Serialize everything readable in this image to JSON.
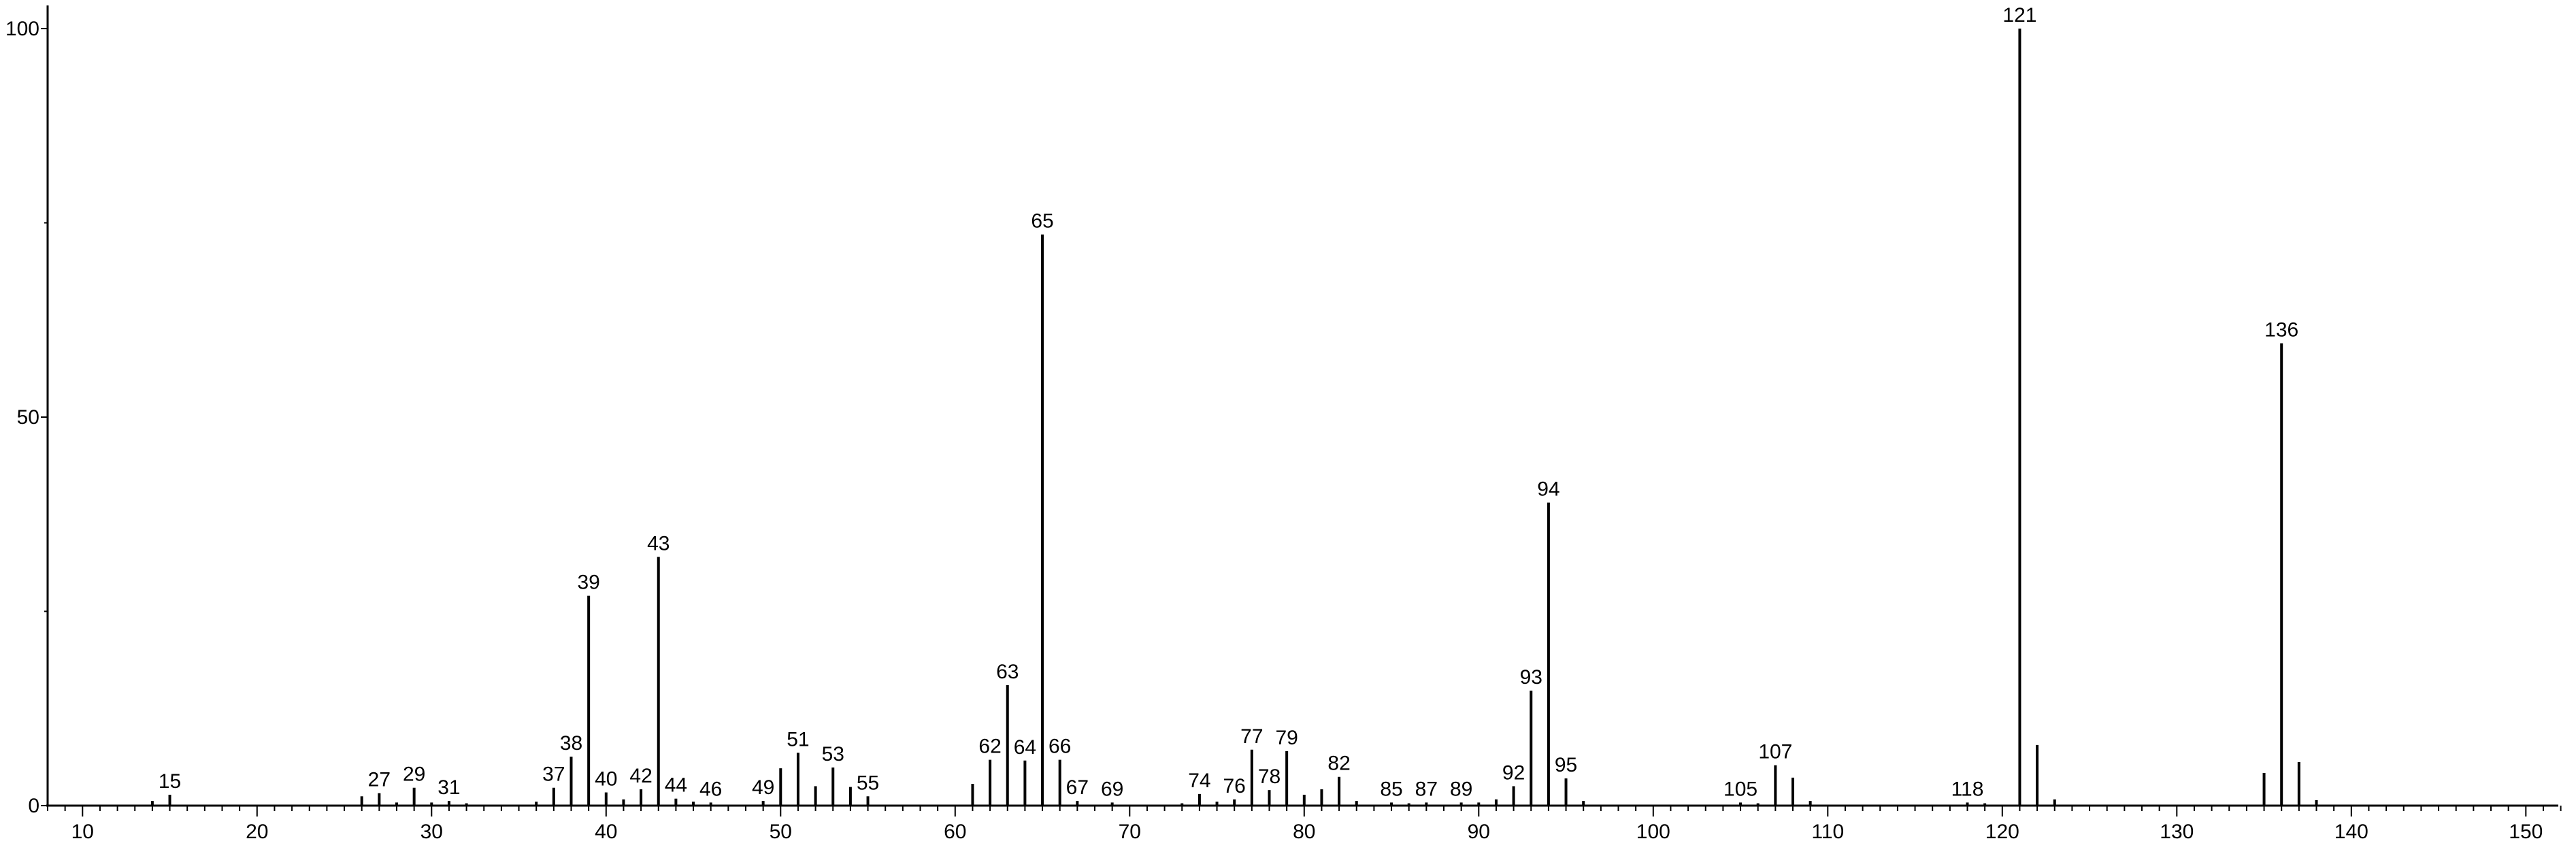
{
  "chart_data": {
    "type": "bar",
    "title": "",
    "xlabel": "",
    "ylabel": "",
    "xlim": [
      8,
      152
    ],
    "ylim": [
      0,
      100
    ],
    "x_ticks": [
      10,
      20,
      30,
      40,
      50,
      60,
      70,
      80,
      90,
      100,
      110,
      120,
      130,
      140,
      150
    ],
    "y_ticks": [
      0,
      50,
      100
    ],
    "grid": false,
    "legend": "none",
    "bar_color": "#000000",
    "peaks": [
      {
        "x": 14,
        "y": 0.6
      },
      {
        "x": 15,
        "y": 1.4,
        "label": "15"
      },
      {
        "x": 26,
        "y": 1.2
      },
      {
        "x": 27,
        "y": 1.6,
        "label": "27"
      },
      {
        "x": 28,
        "y": 0.4
      },
      {
        "x": 29,
        "y": 2.3,
        "label": "29"
      },
      {
        "x": 30,
        "y": 0.4
      },
      {
        "x": 31,
        "y": 0.6,
        "label": "31"
      },
      {
        "x": 32,
        "y": 0.3
      },
      {
        "x": 36,
        "y": 0.5
      },
      {
        "x": 37,
        "y": 2.3,
        "label": "37"
      },
      {
        "x": 38,
        "y": 6.3,
        "label": "38"
      },
      {
        "x": 39,
        "y": 27.0,
        "label": "39"
      },
      {
        "x": 40,
        "y": 1.7,
        "label": "40"
      },
      {
        "x": 41,
        "y": 0.8
      },
      {
        "x": 42,
        "y": 2.1,
        "label": "42"
      },
      {
        "x": 43,
        "y": 32.0,
        "label": "43"
      },
      {
        "x": 44,
        "y": 0.9,
        "label": "44"
      },
      {
        "x": 45,
        "y": 0.5
      },
      {
        "x": 46,
        "y": 0.4,
        "label": "46"
      },
      {
        "x": 49,
        "y": 0.6,
        "label": "49"
      },
      {
        "x": 50,
        "y": 4.8
      },
      {
        "x": 51,
        "y": 6.8,
        "label": "51"
      },
      {
        "x": 52,
        "y": 2.5
      },
      {
        "x": 53,
        "y": 4.9,
        "label": "53"
      },
      {
        "x": 54,
        "y": 2.4
      },
      {
        "x": 55,
        "y": 1.2,
        "label": "55"
      },
      {
        "x": 61,
        "y": 2.8
      },
      {
        "x": 62,
        "y": 5.9,
        "label": "62"
      },
      {
        "x": 63,
        "y": 15.5,
        "label": "63"
      },
      {
        "x": 64,
        "y": 5.8,
        "label": "64"
      },
      {
        "x": 65,
        "y": 73.5,
        "label": "65"
      },
      {
        "x": 66,
        "y": 5.9,
        "label": "66"
      },
      {
        "x": 67,
        "y": 0.6,
        "label": "67"
      },
      {
        "x": 69,
        "y": 0.4,
        "label": "69"
      },
      {
        "x": 73,
        "y": 0.3
      },
      {
        "x": 74,
        "y": 1.5,
        "label": "74"
      },
      {
        "x": 75,
        "y": 0.5
      },
      {
        "x": 76,
        "y": 0.8,
        "label": "76"
      },
      {
        "x": 77,
        "y": 7.2,
        "label": "77"
      },
      {
        "x": 78,
        "y": 2.0,
        "label": "78"
      },
      {
        "x": 79,
        "y": 7.0,
        "label": "79"
      },
      {
        "x": 80,
        "y": 1.4
      },
      {
        "x": 81,
        "y": 2.1
      },
      {
        "x": 82,
        "y": 3.7,
        "label": "82"
      },
      {
        "x": 83,
        "y": 0.6
      },
      {
        "x": 85,
        "y": 0.4,
        "label": "85"
      },
      {
        "x": 86,
        "y": 0.3
      },
      {
        "x": 87,
        "y": 0.4,
        "label": "87"
      },
      {
        "x": 89,
        "y": 0.4,
        "label": "89"
      },
      {
        "x": 90,
        "y": 0.4
      },
      {
        "x": 91,
        "y": 0.8
      },
      {
        "x": 92,
        "y": 2.5,
        "label": "92"
      },
      {
        "x": 93,
        "y": 14.8,
        "label": "93"
      },
      {
        "x": 94,
        "y": 39.0,
        "label": "94"
      },
      {
        "x": 95,
        "y": 3.5,
        "label": "95"
      },
      {
        "x": 96,
        "y": 0.6
      },
      {
        "x": 105,
        "y": 0.4,
        "label": "105"
      },
      {
        "x": 106,
        "y": 0.3
      },
      {
        "x": 107,
        "y": 5.2,
        "label": "107"
      },
      {
        "x": 108,
        "y": 3.6
      },
      {
        "x": 109,
        "y": 0.6
      },
      {
        "x": 118,
        "y": 0.4,
        "label": "118"
      },
      {
        "x": 119,
        "y": 0.3
      },
      {
        "x": 121,
        "y": 100.0,
        "label": "121"
      },
      {
        "x": 122,
        "y": 7.8
      },
      {
        "x": 123,
        "y": 0.8
      },
      {
        "x": 135,
        "y": 4.2
      },
      {
        "x": 136,
        "y": 59.5,
        "label": "136"
      },
      {
        "x": 137,
        "y": 5.6
      },
      {
        "x": 138,
        "y": 0.7
      }
    ]
  }
}
